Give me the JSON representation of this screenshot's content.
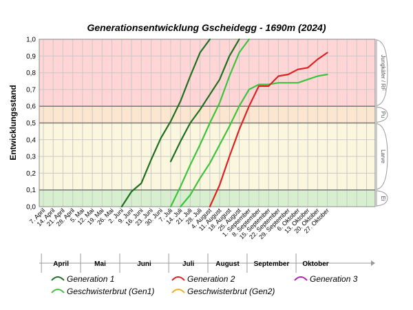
{
  "chart_data": {
    "type": "line",
    "title": "Generationsentwicklung Gscheidegg - 1690m (2024)",
    "ylabel": "Entwicklungsstand",
    "xlabel": "",
    "ylim": [
      0,
      1
    ],
    "yticks": [
      "0,0",
      "0,1",
      "0,2",
      "0,3",
      "0,4",
      "0,5",
      "0,6",
      "0,7",
      "0,8",
      "0,9",
      "1,0"
    ],
    "xticks": [
      "7. April",
      "14. April",
      "21. April",
      "28. April",
      "5. Mai",
      "12. Mai",
      "19. Mai",
      "26. Mai",
      "2. Juni",
      "9. Juni",
      "16. Juni",
      "23. Juni",
      "30. Juni",
      "7. Juli",
      "14. Juli",
      "21. Juli",
      "28. Juli",
      "4. August",
      "11. August",
      "18. August",
      "25. August",
      "1. September",
      "8. September",
      "15. September",
      "22. September",
      "29. September",
      "6. Oktober",
      "13. Oktober",
      "20. Oktober",
      "27. Oktober"
    ],
    "months": [
      "April",
      "Mai",
      "Juni",
      "Juli",
      "August",
      "September",
      "Oktober"
    ],
    "stage_bands": [
      {
        "label": "Jungkäfer / RF",
        "from": 0.6,
        "to": 1.0,
        "color": "#ffd5d5"
      },
      {
        "label": "Pu",
        "from": 0.5,
        "to": 0.6,
        "color": "#fde6cf"
      },
      {
        "label": "Larve",
        "from": 0.1,
        "to": 0.5,
        "color": "#fbf7df"
      },
      {
        "label": "Ei",
        "from": 0.0,
        "to": 0.1,
        "color": "#d7efcf"
      }
    ],
    "grid": true,
    "series": [
      {
        "name": "Generation 1",
        "color": "#1e6e1e",
        "x": [
          "2. Juni",
          "9. Juni",
          "16. Juni",
          "23. Juni",
          "30. Juni",
          "7. Juli",
          "14. Juli",
          "21. Juli",
          "28. Juli",
          "4. August",
          "11. August",
          "18. August",
          "25. August"
        ],
        "values": [
          0.0,
          0.09,
          0.14,
          0.28,
          0.41,
          0.51,
          0.63,
          0.78,
          0.92,
          1.0,
          null,
          null,
          null
        ]
      },
      {
        "name": "Generation 1 (2)",
        "color": "#1e6e1e",
        "x": [
          "7. Juli",
          "14. Juli",
          "21. Juli",
          "28. Juli",
          "4. August",
          "11. August",
          "18. August",
          "25. August"
        ],
        "values": [
          0.27,
          0.39,
          0.5,
          0.58,
          0.67,
          0.76,
          0.9,
          1.0
        ]
      },
      {
        "name": "Geschwisterbrut (Gen1)",
        "color": "#3cc33c",
        "x": [
          "7. Juli",
          "14. Juli",
          "21. Juli",
          "28. Juli",
          "4. August",
          "11. August",
          "18. August",
          "25. August",
          "1. September",
          "8. September",
          "15. September",
          "22. September",
          "29. September",
          "6. Oktober",
          "13. Oktober",
          "20. Oktober",
          "27. Oktober"
        ],
        "values": [
          0.0,
          0.12,
          0.25,
          0.37,
          0.5,
          0.62,
          0.78,
          0.92,
          1.0,
          null,
          null,
          null,
          null,
          null,
          null,
          null,
          null
        ]
      },
      {
        "name": "Geschwisterbrut (Gen1) (2)",
        "color": "#3cc33c",
        "x": [
          "14. Juli",
          "21. Juli",
          "28. Juli",
          "4. August",
          "11. August",
          "18. August",
          "25. August",
          "1. September",
          "8. September",
          "15. September",
          "22. September",
          "29. September",
          "6. Oktober",
          "13. Oktober",
          "20. Oktober",
          "27. Oktober"
        ],
        "values": [
          0.0,
          0.07,
          0.17,
          0.26,
          0.37,
          0.48,
          0.6,
          0.7,
          0.73,
          0.73,
          0.74,
          0.74,
          0.74,
          0.76,
          0.78,
          0.79
        ]
      },
      {
        "name": "Generation 2",
        "color": "#e02020",
        "x": [
          "4. August",
          "11. August",
          "18. August",
          "25. August",
          "1. September",
          "8. September",
          "15. September",
          "22. September",
          "29. September",
          "6. Oktober",
          "13. Oktober",
          "20. Oktober",
          "27. Oktober"
        ],
        "values": [
          0.0,
          0.13,
          0.3,
          0.46,
          0.6,
          0.72,
          0.72,
          0.78,
          0.79,
          0.82,
          0.83,
          0.88,
          0.92
        ]
      }
    ],
    "legend": [
      "Generation 1",
      "Generation 2",
      "Generation 3",
      "Geschwisterbrut (Gen1)",
      "Geschwisterbrut (Gen2)"
    ],
    "legend_colors": [
      "#1e6e1e",
      "#e02020",
      "#b020b0",
      "#3cc33c",
      "#f0b020"
    ],
    "legend_placement": "bottom"
  }
}
